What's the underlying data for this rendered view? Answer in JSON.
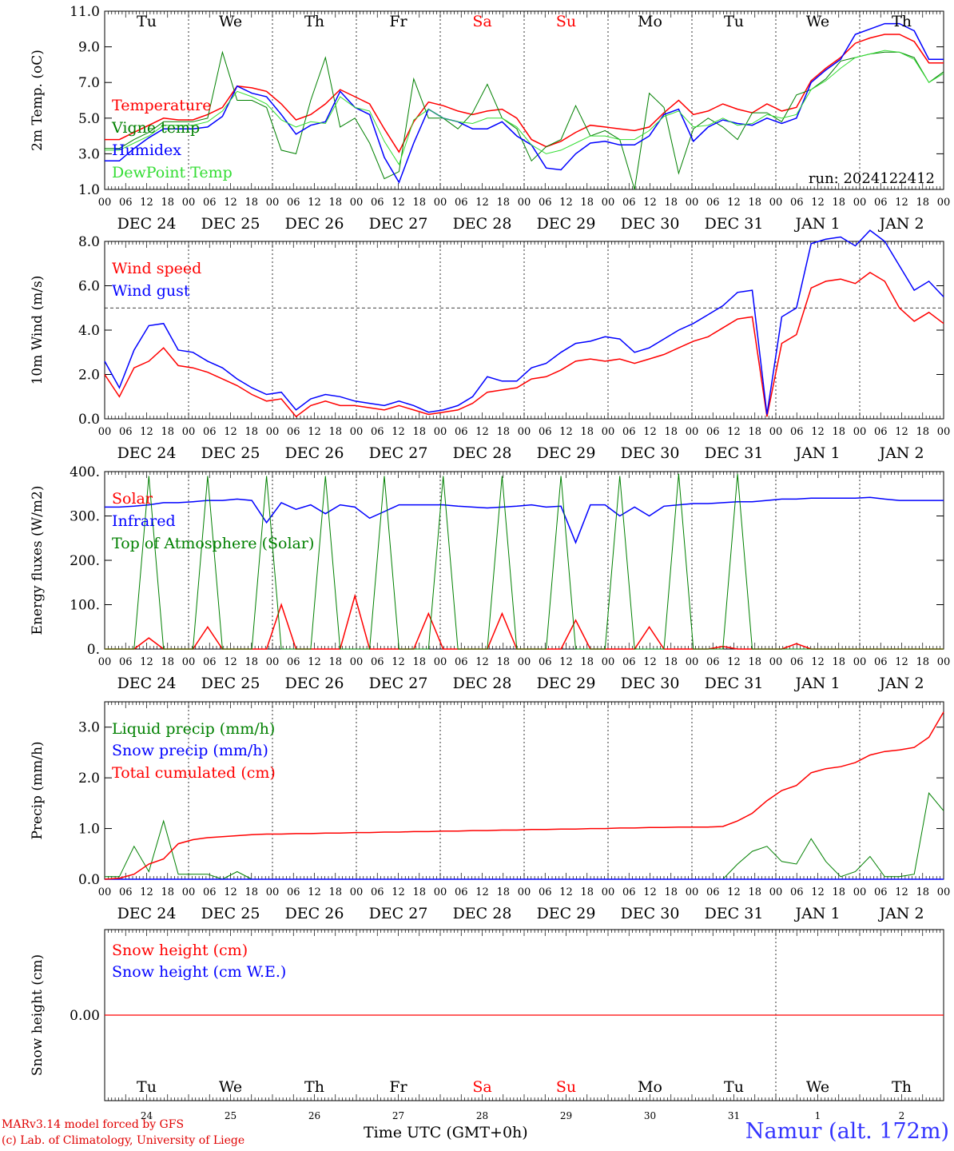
{
  "run_label": "run: 2024122412",
  "footer": {
    "credit_line1": "MARv3.14 model forced by GFS",
    "credit_line2": "(c) Lab. of Climatology, University of Liege",
    "xaxis_title": "Time UTC (GMT+0h)",
    "station": "Namur (alt. 172m)"
  },
  "colors": {
    "red": "#ff0000",
    "green": "#008000",
    "blue": "#0000ff",
    "lightgreen": "#33dd33",
    "weekend": "#ff0000"
  },
  "day_labels": [
    "Tu",
    "We",
    "Th",
    "Fr",
    "Sa",
    "Su",
    "Mo",
    "Tu",
    "We",
    "Th"
  ],
  "weekend_flags": [
    false,
    false,
    false,
    false,
    true,
    true,
    false,
    false,
    false,
    false
  ],
  "date_labels": [
    "DEC 24",
    "DEC 25",
    "DEC 26",
    "DEC 27",
    "DEC 28",
    "DEC 29",
    "DEC 30",
    "DEC 31",
    "JAN  1",
    "JAN  2"
  ],
  "day_numbers": [
    "24",
    "25",
    "26",
    "27",
    "28",
    "29",
    "30",
    "31",
    "1",
    "2"
  ],
  "hour_labels": [
    "00",
    "06",
    "12",
    "18"
  ],
  "chart_data": [
    {
      "type": "line",
      "ylabel": "2m Temp. (oC)",
      "ylim": [
        1.0,
        11.0
      ],
      "yticks": [
        "1.0",
        "3.0",
        "5.0",
        "7.0",
        "9.0",
        "11.0"
      ],
      "x_hours_step": 6,
      "series": [
        {
          "name": "Temperature",
          "color": "red",
          "values": [
            3.8,
            3.8,
            4.2,
            4.6,
            5.0,
            4.9,
            4.9,
            5.2,
            5.6,
            6.8,
            6.7,
            6.5,
            5.8,
            4.9,
            5.2,
            5.8,
            6.6,
            6.2,
            5.8,
            4.4,
            3.1,
            4.8,
            5.9,
            5.7,
            5.4,
            5.2,
            5.4,
            5.5,
            5.0,
            3.8,
            3.4,
            3.7,
            4.2,
            4.6,
            4.5,
            4.4,
            4.3,
            4.5,
            5.3,
            6.0,
            5.2,
            5.4,
            5.8,
            5.5,
            5.3,
            5.8,
            5.4,
            5.6,
            7.1,
            7.8,
            8.4,
            9.2,
            9.5,
            9.7,
            9.7,
            9.3,
            8.1,
            8.1
          ]
        },
        {
          "name": "Vigne temp",
          "color": "green",
          "values": [
            3.3,
            3.3,
            3.8,
            4.2,
            4.8,
            4.8,
            4.8,
            5.0,
            8.7,
            6.0,
            6.0,
            5.6,
            3.2,
            3.0,
            6.0,
            8.4,
            4.5,
            5.0,
            3.6,
            1.6,
            2.0,
            7.2,
            5.0,
            5.0,
            4.4,
            5.3,
            6.9,
            5.0,
            4.4,
            2.6,
            3.4,
            3.8,
            5.7,
            4.0,
            4.3,
            3.8,
            1.0,
            6.4,
            5.6,
            1.9,
            4.4,
            5.0,
            4.5,
            3.8,
            5.3,
            5.3,
            4.8,
            6.3,
            6.6,
            7.2,
            8.2,
            8.4,
            8.6,
            8.7,
            8.7,
            8.4,
            7.0,
            7.6
          ]
        },
        {
          "name": "Humidex",
          "color": "blue",
          "values": [
            2.6,
            2.6,
            3.3,
            3.9,
            4.4,
            4.4,
            4.4,
            4.5,
            5.1,
            6.8,
            6.4,
            6.2,
            5.2,
            4.1,
            4.6,
            4.8,
            6.5,
            5.6,
            5.2,
            2.8,
            1.4,
            3.6,
            5.5,
            5.0,
            4.8,
            4.4,
            4.4,
            4.8,
            4.0,
            3.5,
            2.2,
            2.1,
            3.0,
            3.6,
            3.7,
            3.5,
            3.5,
            4.0,
            5.2,
            5.5,
            3.7,
            4.5,
            4.9,
            4.7,
            4.6,
            5.0,
            4.7,
            5.0,
            7.0,
            7.7,
            8.3,
            9.7,
            10.0,
            10.3,
            10.3,
            9.9,
            8.3,
            8.3
          ]
        },
        {
          "name": "DewPoint Temp",
          "color": "lightgreen",
          "values": [
            3.2,
            3.2,
            3.6,
            4.0,
            4.6,
            4.6,
            4.6,
            4.8,
            5.4,
            6.5,
            6.2,
            5.8,
            4.9,
            4.5,
            4.8,
            4.7,
            6.2,
            5.6,
            5.4,
            3.7,
            2.4,
            4.9,
            5.5,
            5.0,
            4.8,
            4.7,
            5.0,
            5.0,
            4.5,
            3.5,
            3.0,
            3.2,
            3.6,
            4.0,
            4.0,
            3.8,
            3.8,
            4.3,
            5.1,
            5.4,
            4.5,
            4.6,
            5.0,
            4.6,
            4.7,
            5.2,
            5.0,
            5.2,
            6.6,
            7.1,
            7.8,
            8.4,
            8.6,
            8.8,
            8.7,
            8.3,
            7.0,
            7.5
          ]
        }
      ]
    },
    {
      "type": "line",
      "ylabel": "10m Wind (m/s)",
      "ylim": [
        0.0,
        8.0
      ],
      "yticks": [
        "0.0",
        "2.0",
        "4.0",
        "6.0",
        "8.0"
      ],
      "ref_line": 5.0,
      "x_hours_step": 6,
      "series": [
        {
          "name": "Wind speed",
          "color": "red",
          "values": [
            2.0,
            1.0,
            2.3,
            2.6,
            3.2,
            2.4,
            2.3,
            2.1,
            1.8,
            1.5,
            1.1,
            0.8,
            0.9,
            0.1,
            0.6,
            0.8,
            0.6,
            0.6,
            0.5,
            0.4,
            0.6,
            0.4,
            0.2,
            0.3,
            0.4,
            0.7,
            1.2,
            1.3,
            1.4,
            1.8,
            1.9,
            2.2,
            2.6,
            2.7,
            2.6,
            2.7,
            2.5,
            2.7,
            2.9,
            3.2,
            3.5,
            3.7,
            4.1,
            4.5,
            4.6,
            0.1,
            3.4,
            3.8,
            5.9,
            6.2,
            6.3,
            6.1,
            6.6,
            6.2,
            5.0,
            4.4,
            4.8,
            4.3
          ]
        },
        {
          "name": "Wind gust",
          "color": "blue",
          "values": [
            2.6,
            1.4,
            3.1,
            4.2,
            4.3,
            3.1,
            3.0,
            2.6,
            2.3,
            1.8,
            1.4,
            1.1,
            1.2,
            0.4,
            0.9,
            1.1,
            1.0,
            0.8,
            0.7,
            0.6,
            0.8,
            0.6,
            0.3,
            0.4,
            0.6,
            1.0,
            1.9,
            1.7,
            1.7,
            2.3,
            2.5,
            3.0,
            3.4,
            3.5,
            3.7,
            3.6,
            3.0,
            3.2,
            3.6,
            4.0,
            4.3,
            4.7,
            5.1,
            5.7,
            5.8,
            0.2,
            4.6,
            5.0,
            7.9,
            8.1,
            8.2,
            7.8,
            8.5,
            8.0,
            6.9,
            5.8,
            6.2,
            5.5
          ]
        }
      ]
    },
    {
      "type": "line",
      "ylabel": "Energy fluxes (W/m2)",
      "ylim": [
        0,
        400
      ],
      "yticks": [
        "0.",
        "100.",
        "200.",
        "300.",
        "400."
      ],
      "x_hours_step": 6,
      "series": [
        {
          "name": "Solar",
          "color": "red",
          "values": [
            0,
            0,
            0,
            25,
            0,
            0,
            0,
            50,
            0,
            0,
            0,
            0,
            100,
            0,
            0,
            0,
            0,
            120,
            0,
            0,
            0,
            0,
            80,
            0,
            0,
            0,
            0,
            80,
            0,
            0,
            0,
            0,
            65,
            0,
            0,
            0,
            0,
            50,
            0,
            0,
            0,
            0,
            6,
            0,
            0,
            0,
            0,
            12,
            0,
            0,
            0,
            0,
            0,
            0,
            0,
            0,
            0,
            0
          ]
        },
        {
          "name": "Infrared",
          "color": "blue",
          "values": [
            320,
            320,
            322,
            325,
            330,
            330,
            332,
            335,
            335,
            338,
            335,
            285,
            330,
            315,
            325,
            305,
            325,
            320,
            295,
            310,
            325,
            325,
            325,
            325,
            322,
            320,
            318,
            320,
            322,
            325,
            320,
            322,
            240,
            325,
            325,
            300,
            320,
            300,
            322,
            325,
            328,
            328,
            330,
            332,
            332,
            335,
            338,
            338,
            340,
            340,
            340,
            340,
            342,
            338,
            335,
            335,
            335,
            335
          ]
        },
        {
          "name": "Top of Atmosphere (Solar)",
          "color": "green",
          "values": [
            0,
            0,
            0,
            390,
            0,
            0,
            0,
            390,
            0,
            0,
            0,
            390,
            0,
            0,
            0,
            390,
            0,
            0,
            0,
            390,
            0,
            0,
            0,
            390,
            0,
            0,
            0,
            390,
            0,
            0,
            0,
            390,
            0,
            0,
            0,
            390,
            0,
            0,
            0,
            395,
            0,
            0,
            0,
            395,
            0,
            0,
            0,
            0,
            0,
            0,
            0,
            0,
            0,
            0,
            0,
            0,
            0,
            0
          ]
        }
      ]
    },
    {
      "type": "line",
      "ylabel": "Precip (mm/h)",
      "ylim": [
        0.0,
        3.5
      ],
      "yticks": [
        "0.0",
        "1.0",
        "2.0",
        "3.0"
      ],
      "x_hours_step": 6,
      "series": [
        {
          "name": "Liquid precip (mm/h)",
          "color": "green",
          "values": [
            0.05,
            0.05,
            0.65,
            0.15,
            1.15,
            0.1,
            0.1,
            0.1,
            0.0,
            0.15,
            0.0,
            0.0,
            0.0,
            0.0,
            0.0,
            0.0,
            0.0,
            0.0,
            0.0,
            0.0,
            0.0,
            0.0,
            0.0,
            0.0,
            0.0,
            0.0,
            0.0,
            0.0,
            0.0,
            0.0,
            0.0,
            0.0,
            0.0,
            0.0,
            0.0,
            0.0,
            0.0,
            0.0,
            0.0,
            0.0,
            0.0,
            0.0,
            0.0,
            0.3,
            0.55,
            0.65,
            0.35,
            0.3,
            0.8,
            0.35,
            0.05,
            0.15,
            0.45,
            0.05,
            0.05,
            0.1,
            1.7,
            1.35
          ]
        },
        {
          "name": "Snow precip (mm/h)",
          "color": "blue",
          "values": [
            0,
            0,
            0,
            0,
            0,
            0,
            0,
            0,
            0,
            0,
            0,
            0,
            0,
            0,
            0,
            0,
            0,
            0,
            0,
            0,
            0,
            0,
            0,
            0,
            0,
            0,
            0,
            0,
            0,
            0,
            0,
            0,
            0,
            0,
            0,
            0,
            0,
            0,
            0,
            0,
            0,
            0,
            0,
            0,
            0,
            0,
            0,
            0,
            0,
            0,
            0,
            0,
            0,
            0,
            0,
            0,
            0,
            0
          ]
        },
        {
          "name": "Total cumulated (cm)",
          "color": "red",
          "values": [
            0.0,
            0.02,
            0.1,
            0.3,
            0.4,
            0.7,
            0.78,
            0.82,
            0.84,
            0.86,
            0.88,
            0.89,
            0.89,
            0.9,
            0.9,
            0.91,
            0.91,
            0.92,
            0.92,
            0.93,
            0.93,
            0.94,
            0.94,
            0.95,
            0.95,
            0.96,
            0.96,
            0.97,
            0.97,
            0.98,
            0.98,
            0.99,
            0.99,
            1.0,
            1.0,
            1.01,
            1.01,
            1.02,
            1.02,
            1.03,
            1.03,
            1.03,
            1.04,
            1.15,
            1.3,
            1.55,
            1.75,
            1.85,
            2.1,
            2.18,
            2.22,
            2.3,
            2.45,
            2.52,
            2.55,
            2.6,
            2.8,
            3.3
          ]
        }
      ]
    },
    {
      "type": "line",
      "ylabel": "Snow height (cm)",
      "ylim": [
        -1.0,
        1.0
      ],
      "yticks": [
        "0.00"
      ],
      "x_hours_step": 6,
      "series": [
        {
          "name": "Snow height (cm)",
          "color": "red",
          "values": [
            0,
            0
          ]
        },
        {
          "name": "Snow height (cm W.E.)",
          "color": "blue",
          "values": []
        }
      ]
    }
  ]
}
